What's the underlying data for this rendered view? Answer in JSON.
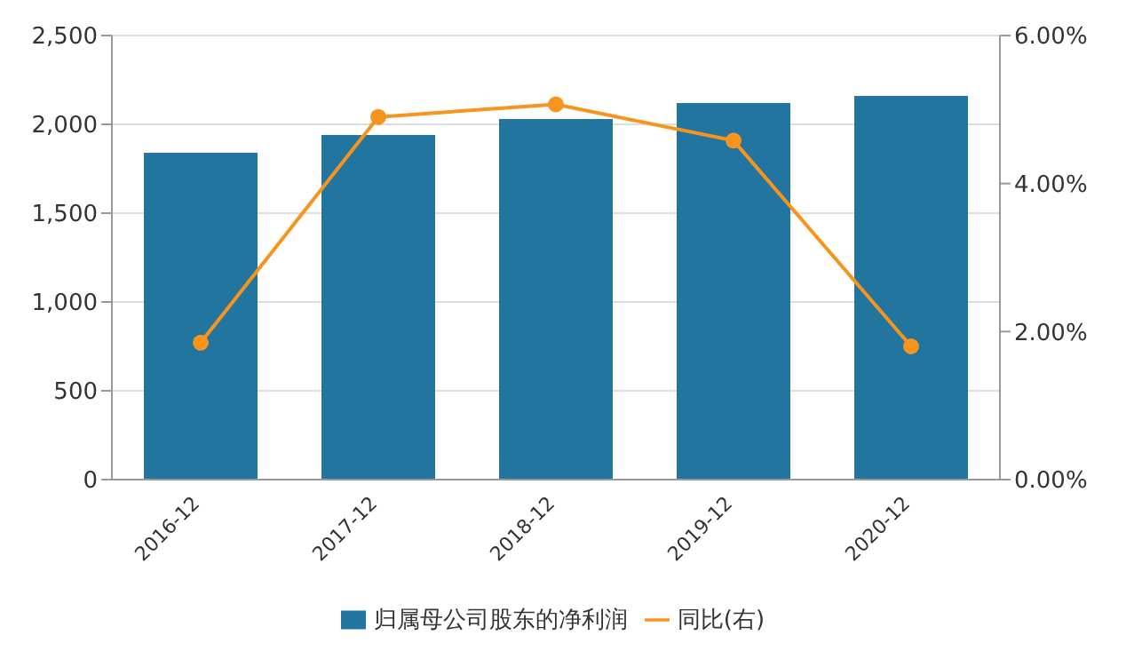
{
  "chart_data": {
    "type": "bar",
    "categories": [
      "2016-12",
      "2017-12",
      "2018-12",
      "2019-12",
      "2020-12"
    ],
    "series": [
      {
        "name": "归属母公司股东的净利润",
        "color": "#21759e",
        "values": [
          1840,
          1940,
          2030,
          2120,
          2160
        ]
      },
      {
        "name": "同比(右)",
        "type": "line",
        "axis": "y2",
        "color": "#f7941d",
        "values": [
          1.85,
          4.9,
          5.07,
          4.58,
          1.8
        ]
      }
    ],
    "ylim": [
      0,
      2500
    ],
    "yticks": [
      {
        "value": 0,
        "label": "0"
      },
      {
        "value": 500,
        "label": "500"
      },
      {
        "value": 1000,
        "label": "1,000"
      },
      {
        "value": 1500,
        "label": "1,500"
      },
      {
        "value": 2000,
        "label": "2,000"
      },
      {
        "value": 2500,
        "label": "2,500"
      }
    ],
    "y2lim": [
      0,
      6
    ],
    "y2ticks": [
      {
        "value": 0,
        "label": "0.00%"
      },
      {
        "value": 2,
        "label": "2.00%"
      },
      {
        "value": 4,
        "label": "4.00%"
      },
      {
        "value": 6,
        "label": "6.00%"
      }
    ],
    "grid": "y",
    "legend": "bottom",
    "marker": "circle"
  }
}
